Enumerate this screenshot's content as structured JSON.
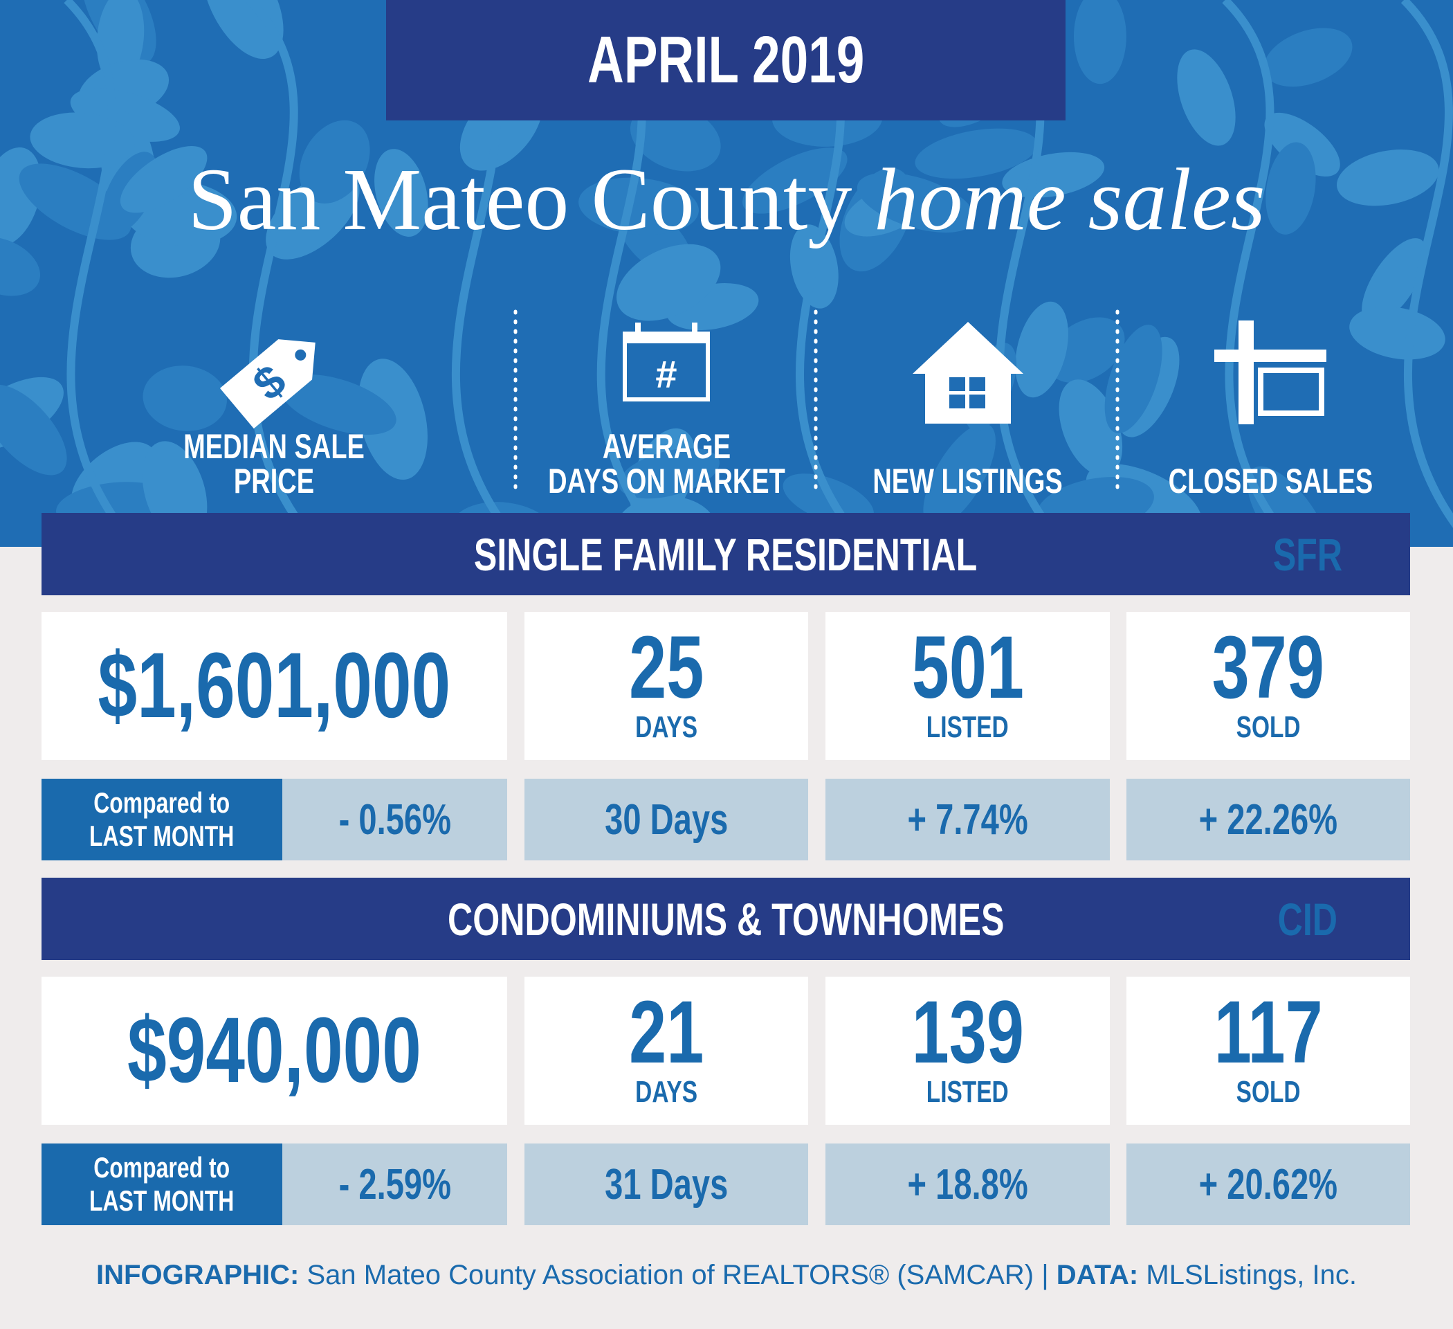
{
  "header": {
    "date": "APRIL 2019",
    "title": "San Mateo County",
    "title_italic": "home sales"
  },
  "metrics": [
    {
      "label": "MEDIAN SALE PRICE",
      "icon_text": "$"
    },
    {
      "label": "AVERAGE\nDAYS ON MARKET",
      "icon_text": "#"
    },
    {
      "label": "NEW LISTINGS"
    },
    {
      "label": "CLOSED SALES"
    }
  ],
  "sections": [
    {
      "name": "SINGLE FAMILY RESIDENTIAL",
      "code": "SFR",
      "cells": [
        {
          "value": "$1,601,000"
        },
        {
          "value": "25",
          "unit": "DAYS"
        },
        {
          "value": "501",
          "unit": "LISTED"
        },
        {
          "value": "379",
          "unit": "SOLD"
        }
      ],
      "comparison_label": "Compared to\nLAST MONTH",
      "comparisons": [
        "- 0.56%",
        "30 Days",
        "+ 7.74%",
        "+ 22.26%"
      ]
    },
    {
      "name": "CONDOMINIUMS & TOWNHOMES",
      "code": "CID",
      "cells": [
        {
          "value": "$940,000"
        },
        {
          "value": "21",
          "unit": "DAYS"
        },
        {
          "value": "139",
          "unit": "LISTED"
        },
        {
          "value": "117",
          "unit": "SOLD"
        }
      ],
      "comparison_label": "Compared to\nLAST MONTH",
      "comparisons": [
        "- 2.59%",
        "31 Days",
        "+ 18.8%",
        "+ 20.62%"
      ]
    }
  ],
  "footer": {
    "source_label": "INFOGRAPHIC:",
    "source": "San Mateo County Association of REALTORS® (SAMCAR) |",
    "data_label": "DATA:",
    "data": "MLSListings, Inc."
  }
}
